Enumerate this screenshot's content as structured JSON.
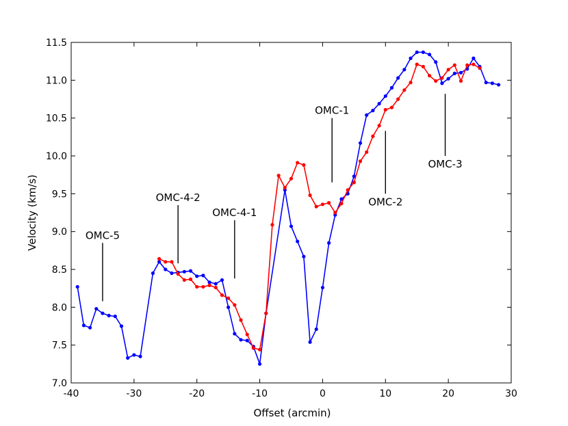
{
  "chart_data": {
    "type": "line",
    "xlabel": "Offset (arcmin)",
    "ylabel": "Velocity (km/s)",
    "xlim": [
      -40,
      30
    ],
    "ylim": [
      7.0,
      11.5
    ],
    "grid": false,
    "xticks": [
      "-40",
      "-30",
      "-20",
      "-10",
      "0",
      "10",
      "20",
      "30"
    ],
    "yticks": [
      "7.0",
      "7.5",
      "8.0",
      "8.5",
      "9.0",
      "9.5",
      "10.0",
      "10.5",
      "11.0",
      "11.5"
    ],
    "series": [
      {
        "color": "#0000ff",
        "points": [
          [
            -39,
            8.27
          ],
          [
            -38,
            7.76
          ],
          [
            -37,
            7.73
          ],
          [
            -36,
            7.98
          ],
          [
            -35,
            7.92
          ],
          [
            -34,
            7.89
          ],
          [
            -33,
            7.88
          ],
          [
            -32,
            7.75
          ],
          [
            -31,
            7.33
          ],
          [
            -30,
            7.37
          ],
          [
            -29,
            7.35
          ],
          [
            -27,
            8.45
          ],
          [
            -26,
            8.6
          ],
          [
            -25,
            8.5
          ],
          [
            -24,
            8.45
          ],
          [
            -23,
            8.46
          ],
          [
            -22,
            8.47
          ],
          [
            -21,
            8.48
          ],
          [
            -20,
            8.41
          ],
          [
            -19,
            8.42
          ],
          [
            -18,
            8.33
          ],
          [
            -17,
            8.31
          ],
          [
            -16,
            8.36
          ],
          [
            -15,
            8.0
          ],
          [
            -14,
            7.65
          ],
          [
            -13,
            7.57
          ],
          [
            -12,
            7.56
          ],
          [
            -11,
            7.48
          ],
          [
            -10,
            7.25
          ],
          [
            -9,
            7.92
          ],
          [
            -6,
            9.55
          ],
          [
            -5,
            9.07
          ],
          [
            -4,
            8.87
          ],
          [
            -3,
            8.67
          ],
          [
            -2,
            7.54
          ],
          [
            -1,
            7.71
          ],
          [
            0,
            8.26
          ],
          [
            1,
            8.85
          ],
          [
            2,
            9.22
          ],
          [
            3,
            9.43
          ],
          [
            4,
            9.5
          ],
          [
            5,
            9.73
          ],
          [
            6,
            10.17
          ],
          [
            7,
            10.54
          ],
          [
            8,
            10.6
          ],
          [
            9,
            10.69
          ],
          [
            10,
            10.79
          ],
          [
            11,
            10.9
          ],
          [
            12,
            11.03
          ],
          [
            13,
            11.14
          ],
          [
            14,
            11.29
          ],
          [
            15,
            11.37
          ],
          [
            16,
            11.37
          ],
          [
            17,
            11.34
          ],
          [
            18,
            11.24
          ],
          [
            19,
            10.96
          ],
          [
            20,
            11.02
          ],
          [
            21,
            11.09
          ],
          [
            22,
            11.1
          ],
          [
            23,
            11.15
          ],
          [
            24,
            11.29
          ],
          [
            25,
            11.18
          ],
          [
            26,
            10.97
          ],
          [
            27,
            10.96
          ],
          [
            28,
            10.94
          ]
        ]
      },
      {
        "color": "#ff0000",
        "points": [
          [
            -26,
            8.64
          ],
          [
            -25,
            8.6
          ],
          [
            -24,
            8.6
          ],
          [
            -23,
            8.44
          ],
          [
            -22,
            8.36
          ],
          [
            -21,
            8.37
          ],
          [
            -20,
            8.27
          ],
          [
            -19,
            8.27
          ],
          [
            -18,
            8.29
          ],
          [
            -17,
            8.26
          ],
          [
            -16,
            8.16
          ],
          [
            -15,
            8.12
          ],
          [
            -14,
            8.03
          ],
          [
            -13,
            7.83
          ],
          [
            -12,
            7.64
          ],
          [
            -11,
            7.46
          ],
          [
            -10,
            7.44
          ],
          [
            -9,
            7.92
          ],
          [
            -8,
            9.09
          ],
          [
            -7,
            9.74
          ],
          [
            -6,
            9.58
          ],
          [
            -5,
            9.7
          ],
          [
            -4,
            9.91
          ],
          [
            -3,
            9.88
          ],
          [
            -2,
            9.48
          ],
          [
            -1,
            9.33
          ],
          [
            0,
            9.36
          ],
          [
            1,
            9.38
          ],
          [
            2,
            9.25
          ],
          [
            3,
            9.37
          ],
          [
            4,
            9.55
          ],
          [
            5,
            9.65
          ],
          [
            6,
            9.93
          ],
          [
            7,
            10.05
          ],
          [
            8,
            10.26
          ],
          [
            9,
            10.4
          ],
          [
            10,
            10.61
          ],
          [
            11,
            10.64
          ],
          [
            12,
            10.75
          ],
          [
            13,
            10.87
          ],
          [
            14,
            10.97
          ],
          [
            15,
            11.21
          ],
          [
            16,
            11.18
          ],
          [
            17,
            11.06
          ],
          [
            18,
            10.99
          ],
          [
            19,
            11.03
          ],
          [
            20,
            11.14
          ],
          [
            21,
            11.2
          ],
          [
            22,
            10.99
          ],
          [
            23,
            11.2
          ],
          [
            24,
            11.21
          ],
          [
            25,
            11.16
          ]
        ]
      }
    ],
    "annotations": [
      {
        "text": "OMC-5",
        "x": -35,
        "y_low": 8.08,
        "y_high": 8.85
      },
      {
        "text": "OMC-4-2",
        "x": -23,
        "y_low": 8.58,
        "y_high": 9.35
      },
      {
        "text": "OMC-4-1",
        "x": -14,
        "y_low": 8.38,
        "y_high": 9.15
      },
      {
        "text": "OMC-1",
        "x": 1.5,
        "y_low": 9.65,
        "y_high": 10.5
      },
      {
        "text": "OMC-2",
        "x": 10,
        "y_low": 9.5,
        "y_high": 10.33,
        "label_below": true
      },
      {
        "text": "OMC-3",
        "x": 19.5,
        "y_low": 10.0,
        "y_high": 10.82,
        "label_below": true
      }
    ]
  }
}
